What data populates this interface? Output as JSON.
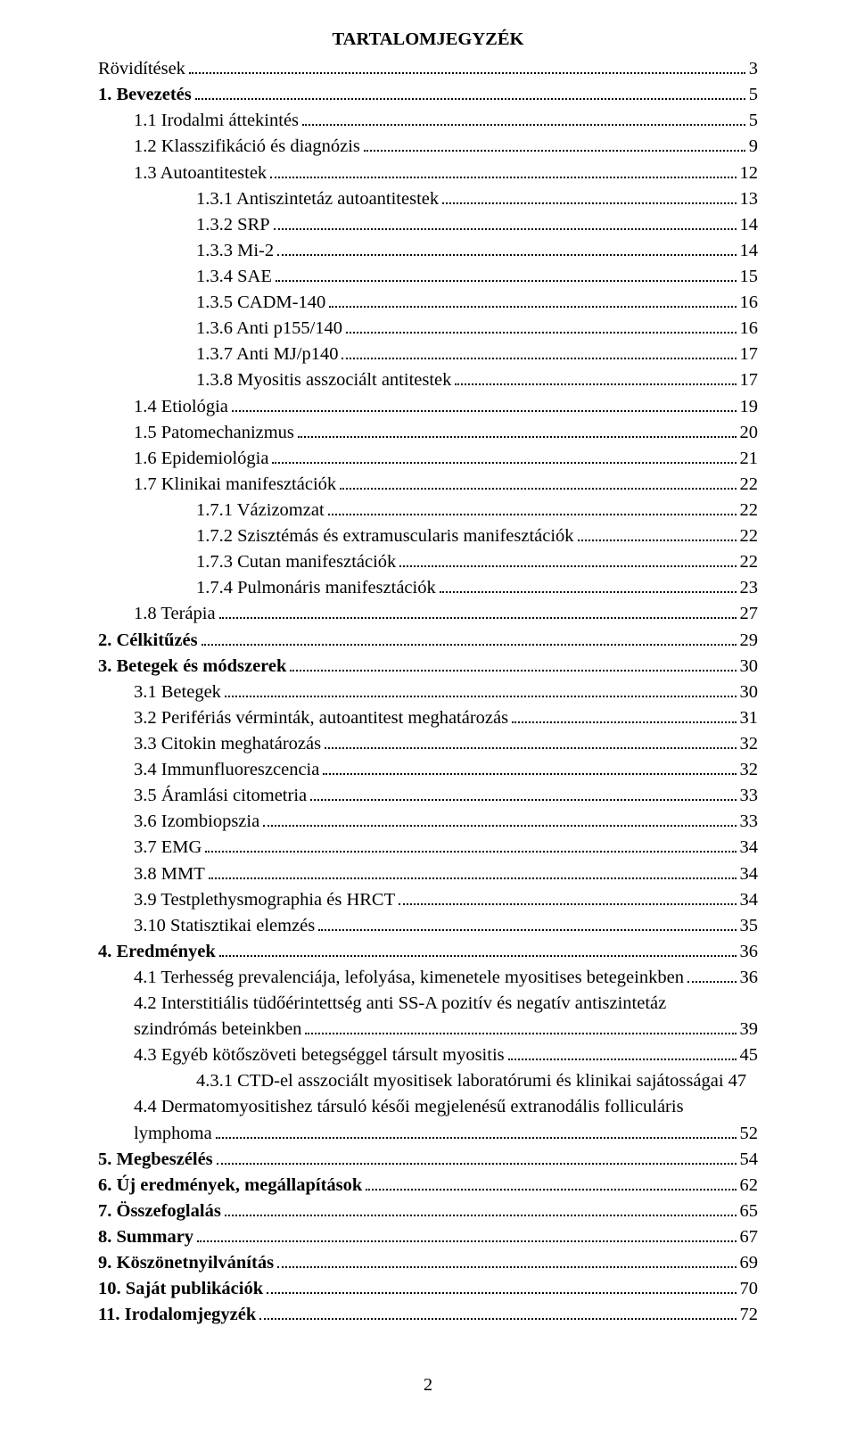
{
  "title": "TARTALOMJEGYZÉK",
  "page_number": "2",
  "font": {
    "family": "Times New Roman",
    "base_size_pt": 15,
    "color": "#000000",
    "background": "#ffffff",
    "leader_color": "#000000"
  },
  "entries": [
    {
      "label": "Rövidítések",
      "page": "3",
      "indent": 0,
      "bold": false
    },
    {
      "label": "1. Bevezetés",
      "page": "5",
      "indent": 0,
      "bold": true
    },
    {
      "label": "1.1 Irodalmi áttekintés",
      "page": "5",
      "indent": 1,
      "bold": false
    },
    {
      "label": "1.2 Klasszifikáció és diagnózis",
      "page": "9",
      "indent": 1,
      "bold": false
    },
    {
      "label": "1.3 Autoantitestek",
      "page": "12",
      "indent": 1,
      "bold": false
    },
    {
      "label": "1.3.1 Antiszintetáz autoantitestek",
      "page": "13",
      "indent": 2,
      "bold": false
    },
    {
      "label": "1.3.2 SRP",
      "page": "14",
      "indent": 2,
      "bold": false
    },
    {
      "label": "1.3.3 Mi-2",
      "page": "14",
      "indent": 2,
      "bold": false
    },
    {
      "label": "1.3.4 SAE",
      "page": "15",
      "indent": 2,
      "bold": false
    },
    {
      "label": "1.3.5 CADM-140",
      "page": "16",
      "indent": 2,
      "bold": false
    },
    {
      "label": "1.3.6 Anti p155/140",
      "page": "16",
      "indent": 2,
      "bold": false
    },
    {
      "label": "1.3.7 Anti MJ/p140",
      "page": "17",
      "indent": 2,
      "bold": false
    },
    {
      "label": "1.3.8 Myositis asszociált antitestek",
      "page": "17",
      "indent": 2,
      "bold": false
    },
    {
      "label": "1.4 Etiológia",
      "page": "19",
      "indent": 1,
      "bold": false
    },
    {
      "label": "1.5 Patomechanizmus",
      "page": "20",
      "indent": 1,
      "bold": false
    },
    {
      "label": "1.6 Epidemiológia",
      "page": "21",
      "indent": 1,
      "bold": false
    },
    {
      "label": "1.7 Klinikai manifesztációk",
      "page": "22",
      "indent": 1,
      "bold": false
    },
    {
      "label": "1.7.1 Vázizomzat",
      "page": "22",
      "indent": 2,
      "bold": false
    },
    {
      "label": "1.7.2 Szisztémás és extramuscularis manifesztációk",
      "page": "22",
      "indent": 2,
      "bold": false
    },
    {
      "label": "1.7.3 Cutan manifesztációk",
      "page": "22",
      "indent": 2,
      "bold": false
    },
    {
      "label": "1.7.4 Pulmonáris manifesztációk",
      "page": "23",
      "indent": 2,
      "bold": false
    },
    {
      "label": "1.8 Terápia",
      "page": "27",
      "indent": 1,
      "bold": false
    },
    {
      "label": "2. Célkitűzés",
      "page": "29",
      "indent": 0,
      "bold": true
    },
    {
      "label": "3. Betegek és módszerek",
      "page": "30",
      "indent": 0,
      "bold": true
    },
    {
      "label": "3.1 Betegek",
      "page": "30",
      "indent": 1,
      "bold": false
    },
    {
      "label": "3.2 Perifériás vérminták, autoantitest meghatározás",
      "page": "31",
      "indent": 1,
      "bold": false
    },
    {
      "label": "3.3 Citokin meghatározás",
      "page": "32",
      "indent": 1,
      "bold": false
    },
    {
      "label": "3.4 Immunfluoreszcencia",
      "page": "32",
      "indent": 1,
      "bold": false
    },
    {
      "label": "3.5 Áramlási citometria",
      "page": "33",
      "indent": 1,
      "bold": false
    },
    {
      "label": "3.6 Izombiopszia",
      "page": "33",
      "indent": 1,
      "bold": false
    },
    {
      "label": "3.7 EMG",
      "page": "34",
      "indent": 1,
      "bold": false
    },
    {
      "label": "3.8 MMT",
      "page": "34",
      "indent": 1,
      "bold": false
    },
    {
      "label": "3.9 Testplethysmographia és HRCT",
      "page": "34",
      "indent": 1,
      "bold": false
    },
    {
      "label": "3.10 Statisztikai elemzés",
      "page": "35",
      "indent": 1,
      "bold": false
    },
    {
      "label": "4. Eredmények",
      "page": "36",
      "indent": 0,
      "bold": true
    },
    {
      "label": "4.1 Terhesség prevalenciája, lefolyása, kimenetele myositises betegeinkben",
      "page": "36",
      "indent": 1,
      "bold": false
    },
    {
      "label_l1": "4.2 Interstitiális tüdőérintettség anti SS-A pozitív és negatív antiszintetáz",
      "label_l2": "szindrómás beteinkben",
      "page": "39",
      "indent": 1,
      "bold": false,
      "multiline": true
    },
    {
      "label": "4.3 Egyéb kötőszöveti betegséggel társult myositis",
      "page": "45",
      "indent": 1,
      "bold": false
    },
    {
      "label": "4.3.1 CTD-el asszociált myositisek laboratórumi és klinikai sajátosságai",
      "page": "47",
      "indent": 2,
      "bold": false,
      "noleader": true
    },
    {
      "label_l1": "4.4 Dermatomyositishez társuló késői megjelenésű extranodális folliculáris",
      "label_l2": "lymphoma",
      "page": "52",
      "indent": 1,
      "bold": false,
      "multiline": true
    },
    {
      "label": "5. Megbeszélés",
      "page": "54",
      "indent": 0,
      "bold": true
    },
    {
      "label": "6. Új eredmények, megállapítások",
      "page": "62",
      "indent": 0,
      "bold": true
    },
    {
      "label": "7. Összefoglalás",
      "page": "65",
      "indent": 0,
      "bold": true
    },
    {
      "label": "8. Summary",
      "page": "67",
      "indent": 0,
      "bold": true
    },
    {
      "label": "9. Köszönetnyilvánítás",
      "page": "69",
      "indent": 0,
      "bold": true
    },
    {
      "label": "10. Saját publikációk",
      "page": "70",
      "indent": 0,
      "bold": true
    },
    {
      "label": "11. Irodalomjegyzék",
      "page": "72",
      "indent": 0,
      "bold": true
    }
  ]
}
